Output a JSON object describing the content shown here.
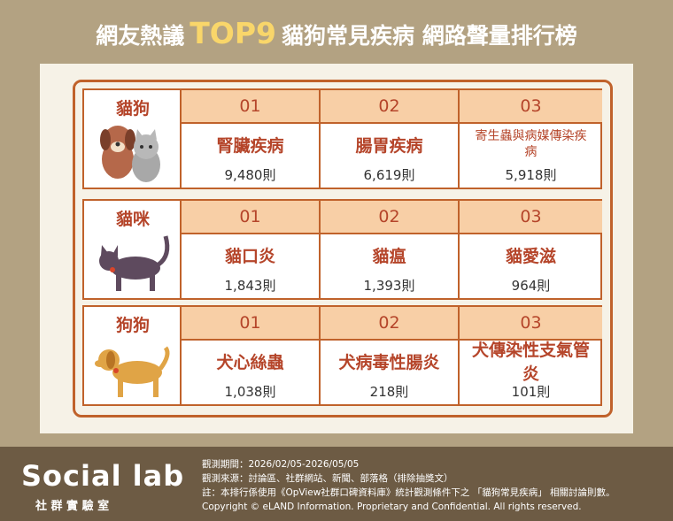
{
  "header": {
    "title_prefix": "網友熱議",
    "title_highlight": "TOP9",
    "title_suffix": "貓狗常見疾病 網路聲量排行榜"
  },
  "groups": [
    {
      "label": "貓狗",
      "items": [
        {
          "rank": "01",
          "name": "腎臟疾病",
          "count": "9,480則"
        },
        {
          "rank": "02",
          "name": "腸胃疾病",
          "count": "6,619則"
        },
        {
          "rank": "03",
          "name": "寄生蟲與病媒傳染疾病",
          "count": "5,918則"
        }
      ]
    },
    {
      "label": "貓咪",
      "items": [
        {
          "rank": "01",
          "name": "貓口炎",
          "count": "1,843則"
        },
        {
          "rank": "02",
          "name": "貓瘟",
          "count": "1,393則"
        },
        {
          "rank": "03",
          "name": "貓愛滋",
          "count": "964則"
        }
      ]
    },
    {
      "label": "狗狗",
      "items": [
        {
          "rank": "01",
          "name": "犬心絲蟲",
          "count": "1,038則"
        },
        {
          "rank": "02",
          "name": "犬病毒性腸炎",
          "count": "218則"
        },
        {
          "rank": "03",
          "name": "犬傳染性支氣管炎",
          "count": "101則"
        }
      ]
    }
  ],
  "footer": {
    "logo": "Social lab",
    "logo_subtitle": "社 群 實 驗 室",
    "notes": [
      "觀測期間：2026/02/05-2026/05/05",
      "觀測來源：討論區、社群網站、新聞、部落格（排除抽獎文）",
      "註：本排行係使用《OpView社群口碑資料庫》統計觀測條件下之 「貓狗常見疾病」 相關討論則數。",
      "Copyright © eLAND Information. Proprietary and Confidential. All rights reserved."
    ]
  }
}
